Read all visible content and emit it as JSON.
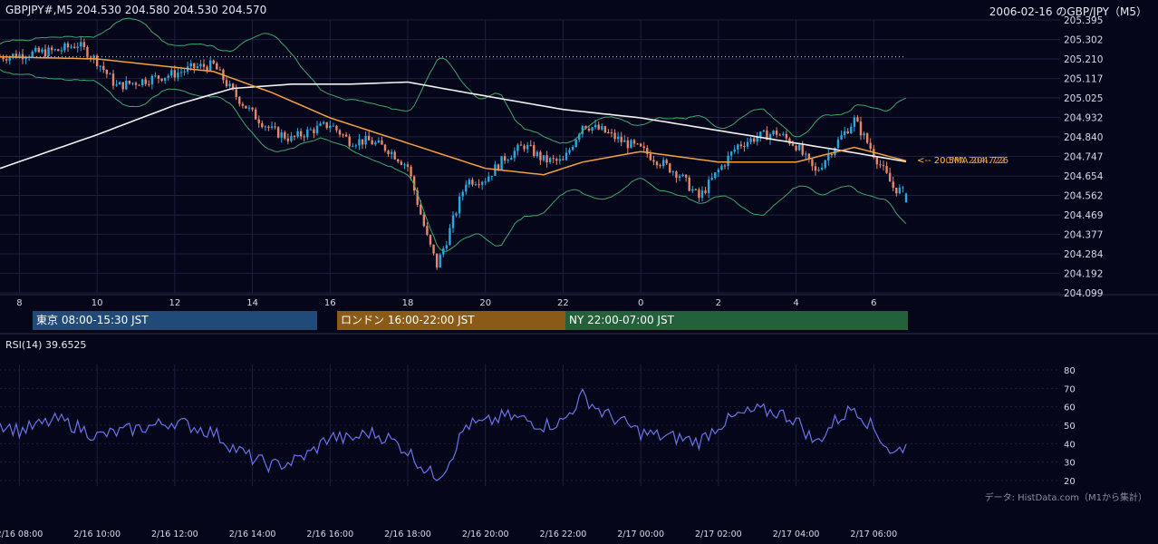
{
  "header": {
    "symbol_line": "GBPJPY#,M5 204.530 204.580 204.530 204.570",
    "title_right": "2006-02-16 のGBP/JPY（M5）",
    "source_note": "データ: HistData.com（M1から集計）"
  },
  "sessions": [
    {
      "label": "東京 08:00-15:30 JST",
      "color": "#204a78"
    },
    {
      "label": "ロンドン 16:00-22:00 JST",
      "color": "#8a5a16"
    },
    {
      "label": "NY 22:00-07:00 JST",
      "color": "#23613a"
    }
  ],
  "rsi_panel": {
    "label": "RSI(14) 39.6525"
  },
  "ma_labels": [
    "<-- 20.5MA 204.726",
    "<-- 200MA 204.722"
  ],
  "colors": {
    "background": "#05061a",
    "bull": "#2aa9e0",
    "bear": "#e8876a",
    "ma_short": "#f2a23c",
    "ma_long": "#f2f2f2",
    "bollinger": "#3fa86a",
    "rsi": "#6a74e8",
    "grid": "#1d2040"
  },
  "chart_data": [
    {
      "type": "candlestick",
      "title": "GBPJPY#,M5",
      "y_ticks": [
        "205.395",
        "205.302",
        "205.210",
        "205.117",
        "205.025",
        "204.932",
        "204.840",
        "204.747",
        "204.654",
        "204.562",
        "204.469",
        "204.377",
        "204.284",
        "204.192",
        "204.099"
      ],
      "ylim": [
        204.099,
        205.395
      ],
      "x_ticks": [
        "8",
        "10",
        "12",
        "14",
        "16",
        "18",
        "20",
        "22",
        "0",
        "2",
        "4",
        "6"
      ],
      "x_range_jst": [
        "2/16 07:30",
        "2/17 06:50"
      ],
      "last_bar": {
        "open": 204.53,
        "high": 204.58,
        "low": 204.53,
        "close": 204.57
      },
      "price_path": [
        [
          "07:30",
          205.22
        ],
        [
          "08:00",
          205.23
        ],
        [
          "08:30",
          205.24
        ],
        [
          "09:00",
          205.25
        ],
        [
          "09:30",
          205.28
        ],
        [
          "10:00",
          205.2
        ],
        [
          "10:30",
          205.08
        ],
        [
          "11:00",
          205.1
        ],
        [
          "11:30",
          205.12
        ],
        [
          "12:00",
          205.14
        ],
        [
          "12:30",
          205.17
        ],
        [
          "13:00",
          205.18
        ],
        [
          "13:30",
          205.05
        ],
        [
          "14:00",
          204.95
        ],
        [
          "14:30",
          204.87
        ],
        [
          "15:00",
          204.83
        ],
        [
          "15:30",
          204.87
        ],
        [
          "16:00",
          204.9
        ],
        [
          "16:30",
          204.82
        ],
        [
          "17:00",
          204.82
        ],
        [
          "17:30",
          204.78
        ],
        [
          "18:00",
          204.7
        ],
        [
          "18:30",
          204.36
        ],
        [
          "18:45",
          204.23
        ],
        [
          "19:00",
          204.35
        ],
        [
          "19:30",
          204.63
        ],
        [
          "20:00",
          204.64
        ],
        [
          "20:30",
          204.74
        ],
        [
          "21:00",
          204.8
        ],
        [
          "21:30",
          204.73
        ],
        [
          "22:00",
          204.72
        ],
        [
          "22:30",
          204.9
        ],
        [
          "23:00",
          204.87
        ],
        [
          "23:30",
          204.82
        ],
        [
          "00:00",
          204.78
        ],
        [
          "00:30",
          204.72
        ],
        [
          "01:00",
          204.66
        ],
        [
          "01:30",
          204.55
        ],
        [
          "02:00",
          204.68
        ],
        [
          "02:30",
          204.8
        ],
        [
          "03:00",
          204.84
        ],
        [
          "03:30",
          204.86
        ],
        [
          "04:00",
          204.8
        ],
        [
          "04:30",
          204.67
        ],
        [
          "05:00",
          204.8
        ],
        [
          "05:30",
          204.92
        ],
        [
          "06:00",
          204.76
        ],
        [
          "06:30",
          204.6
        ],
        [
          "06:50",
          204.57
        ]
      ],
      "series": [
        {
          "name": "20.5MA",
          "last": 204.726,
          "path": [
            [
              "07:30",
              205.22
            ],
            [
              "10:00",
              205.21
            ],
            [
              "13:00",
              205.15
            ],
            [
              "14:30",
              205.05
            ],
            [
              "16:00",
              204.93
            ],
            [
              "18:00",
              204.81
            ],
            [
              "20:00",
              204.69
            ],
            [
              "21:30",
              204.66
            ],
            [
              "22:30",
              204.72
            ],
            [
              "00:00",
              204.77
            ],
            [
              "02:00",
              204.72
            ],
            [
              "04:00",
              204.72
            ],
            [
              "05:30",
              204.79
            ],
            [
              "06:50",
              204.726
            ]
          ]
        },
        {
          "name": "200MA",
          "last": 204.722,
          "path": [
            [
              "07:30",
              204.69
            ],
            [
              "10:00",
              204.85
            ],
            [
              "12:00",
              204.99
            ],
            [
              "13:30",
              205.07
            ],
            [
              "15:00",
              205.09
            ],
            [
              "16:30",
              205.09
            ],
            [
              "18:00",
              205.1
            ],
            [
              "19:30",
              205.05
            ],
            [
              "22:00",
              204.97
            ],
            [
              "00:00",
              204.93
            ],
            [
              "03:00",
              204.84
            ],
            [
              "05:00",
              204.78
            ],
            [
              "06:50",
              204.722
            ]
          ]
        }
      ]
    },
    {
      "type": "line",
      "title": "RSI(14) 39.6525",
      "y_ticks": [
        "80",
        "70",
        "60",
        "50",
        "40",
        "30",
        "20"
      ],
      "ylim": [
        20,
        80
      ],
      "x_ticks": [
        "2/16 08:00",
        "2/16 10:00",
        "2/16 12:00",
        "2/16 14:00",
        "2/16 16:00",
        "2/16 18:00",
        "2/16 20:00",
        "2/16 22:00",
        "2/17 00:00",
        "2/17 02:00",
        "2/17 04:00",
        "2/17 06:00"
      ],
      "series": [
        {
          "name": "RSI(14)",
          "last": 39.6525,
          "path": [
            [
              "07:30",
              51
            ],
            [
              "08:00",
              47
            ],
            [
              "08:30",
              50
            ],
            [
              "09:00",
              53
            ],
            [
              "09:30",
              49
            ],
            [
              "10:00",
              44
            ],
            [
              "10:30",
              46
            ],
            [
              "11:00",
              48
            ],
            [
              "11:30",
              50
            ],
            [
              "12:00",
              52
            ],
            [
              "12:30",
              49
            ],
            [
              "13:00",
              46
            ],
            [
              "13:30",
              38
            ],
            [
              "14:00",
              32
            ],
            [
              "14:30",
              28
            ],
            [
              "15:00",
              30
            ],
            [
              "15:30",
              35
            ],
            [
              "16:00",
              44
            ],
            [
              "16:30",
              42
            ],
            [
              "17:00",
              46
            ],
            [
              "17:30",
              43
            ],
            [
              "18:00",
              36
            ],
            [
              "18:30",
              25
            ],
            [
              "18:45",
              22
            ],
            [
              "19:00",
              28
            ],
            [
              "19:30",
              50
            ],
            [
              "20:00",
              51
            ],
            [
              "20:30",
              55
            ],
            [
              "21:00",
              53
            ],
            [
              "21:30",
              50
            ],
            [
              "22:00",
              52
            ],
            [
              "22:30",
              66
            ],
            [
              "23:00",
              57
            ],
            [
              "23:30",
              52
            ],
            [
              "00:00",
              46
            ],
            [
              "00:30",
              44
            ],
            [
              "01:00",
              43
            ],
            [
              "01:30",
              41
            ],
            [
              "02:00",
              50
            ],
            [
              "02:30",
              55
            ],
            [
              "03:00",
              58
            ],
            [
              "03:30",
              57
            ],
            [
              "04:00",
              53
            ],
            [
              "04:30",
              40
            ],
            [
              "05:00",
              52
            ],
            [
              "05:30",
              60
            ],
            [
              "06:00",
              48
            ],
            [
              "06:30",
              34
            ],
            [
              "06:50",
              39.65
            ]
          ]
        }
      ]
    }
  ]
}
